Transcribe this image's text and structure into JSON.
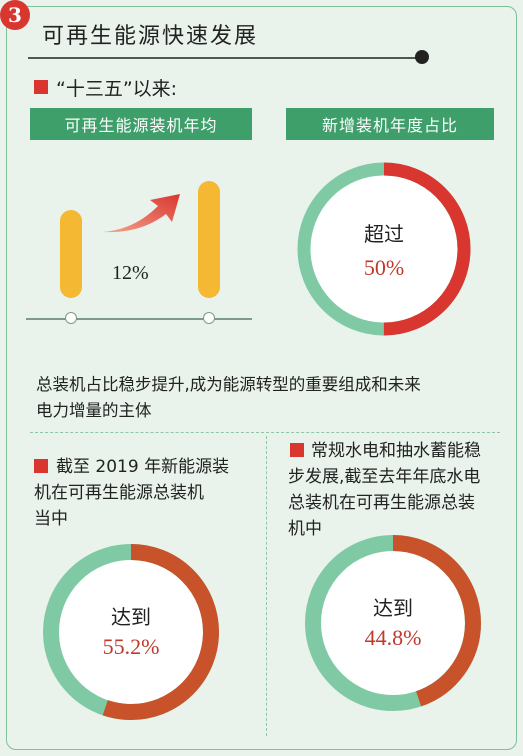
{
  "header": {
    "badge_number": "3",
    "title": "可再生能源快速发展"
  },
  "section1": {
    "heading": "“十三五”以来:",
    "band_left": "可再生能源装机年均",
    "band_right": "新增装机年度占比",
    "growth_value": "12%",
    "ring": {
      "label": "超过",
      "value": "50%",
      "fraction": 0.5
    }
  },
  "summary_text": {
    "line1": "总装机占比稳步提升,成为能源转型的重要组成和未来",
    "line2": "电力增量的主体"
  },
  "section2": {
    "left": {
      "line1": "截至 2019 年新能源装",
      "line2": "机在可再生能源总装机",
      "line3": "当中",
      "ring_label": "达到",
      "ring_value": "55.2%",
      "fraction": 0.552
    },
    "right": {
      "line1": "常规水电和抽水蓄能稳",
      "line2": "步发展,截至去年年底水电",
      "line3": "总装机在可再生能源总装",
      "line4": "机中",
      "ring_label": "达到",
      "ring_value": "44.8%",
      "fraction": 0.448
    }
  },
  "colors": {
    "accent_red": "#d9362f",
    "band_green": "#3f9f6b",
    "ring_green": "#7fcaa4",
    "ring_orange": "#c8532a",
    "pill_yellow": "#f5b832",
    "background": "#e9f3ec"
  }
}
